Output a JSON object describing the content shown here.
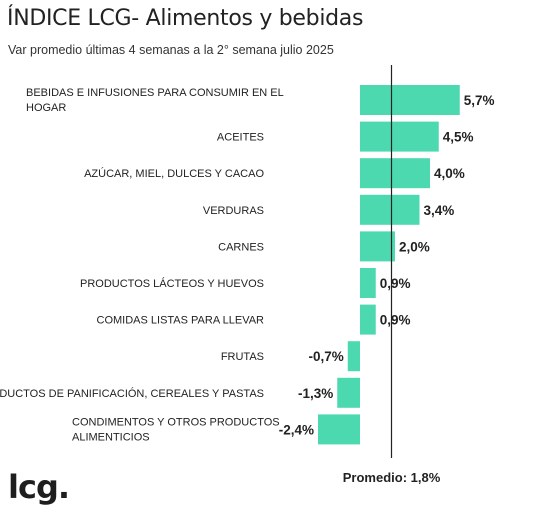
{
  "header": {
    "title": "ÍNDICE LCG- Alimentos y bebidas",
    "subtitle": "Var promedio últimas 4 semanas a la 2° semana julio 2025"
  },
  "logo": {
    "text": "lcg."
  },
  "chart_data": {
    "type": "bar",
    "orientation": "horizontal",
    "categories": [
      [
        "BEBIDAS E INFUSIONES PARA CONSUMIR EN EL",
        "HOGAR"
      ],
      [
        "ACEITES"
      ],
      [
        "AZÚCAR, MIEL, DULCES Y CACAO"
      ],
      [
        "VERDURAS"
      ],
      [
        "CARNES"
      ],
      [
        "PRODUCTOS LÁCTEOS Y HUEVOS"
      ],
      [
        "COMIDAS LISTAS PARA LLEVAR"
      ],
      [
        "FRUTAS"
      ],
      [
        "PRODUCTOS DE PANIFICACIÓN, CEREALES Y PASTAS"
      ],
      [
        "CONDIMENTOS Y OTROS PRODUCTOS",
        "ALIMENTICIOS"
      ]
    ],
    "values": [
      5.7,
      4.5,
      4.0,
      3.4,
      2.0,
      0.9,
      0.9,
      -0.7,
      -1.3,
      -2.4
    ],
    "value_labels": [
      "5,7%",
      "4,5%",
      "4,0%",
      "3,4%",
      "2,0%",
      "0,9%",
      "0,9%",
      "-0,7%",
      "-1,3%",
      "-2,4%"
    ],
    "average": {
      "value": 1.8,
      "label": "Promedio: 1,8%"
    },
    "bar_color": "#4dd9b0",
    "axis_line_color": "#222222",
    "xlim": [
      -2.4,
      5.7
    ],
    "grid": false,
    "legend": "none"
  }
}
